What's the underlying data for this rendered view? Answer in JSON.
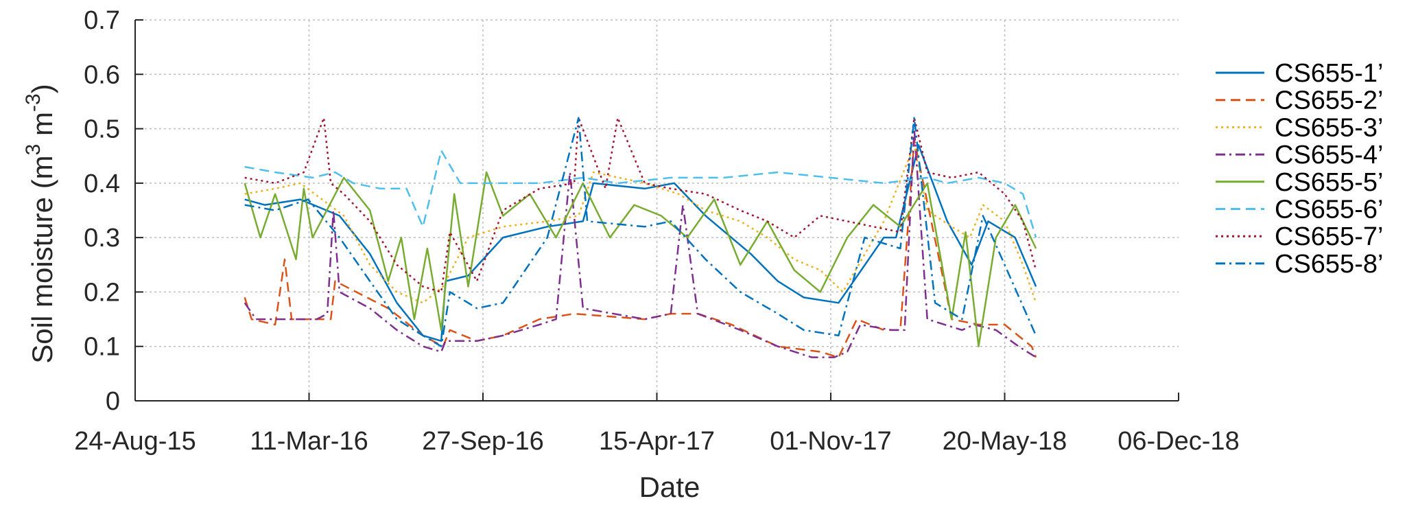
{
  "chart_data": {
    "type": "line",
    "xlabel": "Date",
    "ylabel_text": "Soil moisture (m",
    "ylabel_sup1": "3",
    "ylabel_mid": " m",
    "ylabel_sup2": "-3",
    "ylabel_end": ")",
    "ylim": [
      0,
      0.7
    ],
    "yticks": [
      0,
      0.1,
      0.2,
      0.3,
      0.4,
      0.5,
      0.6,
      0.7
    ],
    "ytick_labels": [
      "0",
      "0.1",
      "0.2",
      "0.3",
      "0.4",
      "0.5",
      "0.6",
      "0.7"
    ],
    "xlim": [
      "2015-08-24",
      "2018-12-06"
    ],
    "xticks": [
      "2015-08-24",
      "2016-03-11",
      "2016-09-27",
      "2017-04-15",
      "2017-11-01",
      "2018-05-20",
      "2018-12-06"
    ],
    "xtick_labels": [
      "24-Aug-15",
      "11-Mar-16",
      "27-Sep-16",
      "15-Apr-17",
      "01-Nov-17",
      "20-May-18",
      "06-Dec-18"
    ],
    "grid": true,
    "legend_position": "right",
    "series": [
      {
        "name": "CS655-1’",
        "color": "#0072BD",
        "dash": "solid",
        "x": [
          "2015-12-28",
          "2016-01-20",
          "2016-03-01",
          "2016-04-15",
          "2016-05-20",
          "2016-06-20",
          "2016-07-20",
          "2016-08-10",
          "2016-08-15",
          "2016-09-10",
          "2016-10-20",
          "2016-12-10",
          "2017-01-20",
          "2017-02-01",
          "2017-04-01",
          "2017-05-05",
          "2017-06-10",
          "2017-08-01",
          "2017-09-01",
          "2017-10-01",
          "2017-11-10",
          "2018-01-01",
          "2018-01-15",
          "2018-02-10",
          "2018-03-15",
          "2018-04-12",
          "2018-05-01",
          "2018-06-01",
          "2018-06-25"
        ],
        "y": [
          0.37,
          0.36,
          0.37,
          0.34,
          0.27,
          0.18,
          0.12,
          0.11,
          0.22,
          0.23,
          0.3,
          0.32,
          0.33,
          0.4,
          0.39,
          0.4,
          0.34,
          0.27,
          0.22,
          0.19,
          0.18,
          0.3,
          0.3,
          0.47,
          0.33,
          0.25,
          0.33,
          0.3,
          0.21
        ]
      },
      {
        "name": "CS655-2’",
        "color": "#D95319",
        "dash": "dashed",
        "x": [
          "2015-12-28",
          "2016-01-05",
          "2016-02-01",
          "2016-02-12",
          "2016-02-20",
          "2016-04-05",
          "2016-04-10",
          "2016-06-10",
          "2016-07-20",
          "2016-08-12",
          "2016-08-20",
          "2016-09-20",
          "2016-10-20",
          "2016-12-01",
          "2017-01-10",
          "2017-04-01",
          "2017-05-01",
          "2017-06-01",
          "2017-07-10",
          "2017-09-01",
          "2017-10-20",
          "2017-11-10",
          "2017-12-01",
          "2018-01-01",
          "2018-01-20",
          "2018-02-05",
          "2018-03-20",
          "2018-04-20",
          "2018-05-20",
          "2018-06-20",
          "2018-06-25"
        ],
        "y": [
          0.19,
          0.15,
          0.14,
          0.26,
          0.15,
          0.15,
          0.22,
          0.17,
          0.12,
          0.1,
          0.13,
          0.11,
          0.12,
          0.15,
          0.16,
          0.15,
          0.16,
          0.16,
          0.14,
          0.1,
          0.09,
          0.08,
          0.15,
          0.13,
          0.13,
          0.48,
          0.15,
          0.14,
          0.14,
          0.1,
          0.08
        ]
      },
      {
        "name": "CS655-3’",
        "color": "#EDB120",
        "dash": "dotted",
        "x": [
          "2015-12-28",
          "2016-02-01",
          "2016-03-01",
          "2016-04-20",
          "2016-05-20",
          "2016-06-20",
          "2016-07-20",
          "2016-08-12",
          "2016-09-10",
          "2016-10-20",
          "2016-12-10",
          "2017-01-15",
          "2017-02-01",
          "2017-04-01",
          "2017-05-10",
          "2017-06-10",
          "2017-07-20",
          "2017-08-20",
          "2017-09-20",
          "2017-10-20",
          "2017-11-15",
          "2018-01-01",
          "2018-02-05",
          "2018-02-20",
          "2018-03-20",
          "2018-04-10",
          "2018-04-25",
          "2018-05-20",
          "2018-06-10",
          "2018-06-25"
        ],
        "y": [
          0.38,
          0.39,
          0.4,
          0.34,
          0.25,
          0.2,
          0.18,
          0.21,
          0.3,
          0.32,
          0.33,
          0.34,
          0.42,
          0.4,
          0.38,
          0.35,
          0.33,
          0.3,
          0.26,
          0.24,
          0.2,
          0.33,
          0.47,
          0.35,
          0.32,
          0.3,
          0.36,
          0.33,
          0.25,
          0.18
        ]
      },
      {
        "name": "CS655-4’",
        "color": "#7E2F8E",
        "dash": "dashdot",
        "x": [
          "2015-12-28",
          "2016-01-10",
          "2016-03-20",
          "2016-04-01",
          "2016-04-08",
          "2016-04-15",
          "2016-05-20",
          "2016-06-20",
          "2016-07-20",
          "2016-08-10",
          "2016-08-15",
          "2016-09-20",
          "2016-10-20",
          "2016-12-01",
          "2016-12-20",
          "2017-01-05",
          "2017-01-20",
          "2017-04-01",
          "2017-05-01",
          "2017-05-15",
          "2017-06-01",
          "2017-07-20",
          "2017-09-01",
          "2017-10-10",
          "2017-11-05",
          "2017-11-20",
          "2017-12-05",
          "2018-01-10",
          "2018-01-25",
          "2018-02-05",
          "2018-02-20",
          "2018-04-01",
          "2018-04-15",
          "2018-05-10",
          "2018-06-05",
          "2018-06-25"
        ],
        "y": [
          0.18,
          0.15,
          0.15,
          0.16,
          0.35,
          0.2,
          0.17,
          0.13,
          0.1,
          0.09,
          0.11,
          0.11,
          0.12,
          0.14,
          0.15,
          0.42,
          0.17,
          0.15,
          0.16,
          0.36,
          0.16,
          0.13,
          0.1,
          0.08,
          0.08,
          0.09,
          0.14,
          0.13,
          0.13,
          0.5,
          0.15,
          0.13,
          0.14,
          0.13,
          0.1,
          0.08
        ]
      },
      {
        "name": "CS655-5’",
        "color": "#77AC30",
        "dash": "solid",
        "x": [
          "2015-12-28",
          "2016-01-15",
          "2016-02-01",
          "2016-02-25",
          "2016-03-05",
          "2016-03-15",
          "2016-04-20",
          "2016-05-20",
          "2016-06-10",
          "2016-06-25",
          "2016-07-10",
          "2016-07-25",
          "2016-08-10",
          "2016-08-25",
          "2016-09-10",
          "2016-10-01",
          "2016-10-20",
          "2016-11-20",
          "2016-12-20",
          "2017-01-20",
          "2017-02-20",
          "2017-03-20",
          "2017-04-20",
          "2017-05-20",
          "2017-06-20",
          "2017-07-20",
          "2017-08-20",
          "2017-09-20",
          "2017-10-20",
          "2017-11-20",
          "2017-12-20",
          "2018-01-20",
          "2018-02-20",
          "2018-03-20",
          "2018-04-05",
          "2018-04-20",
          "2018-05-10",
          "2018-06-01",
          "2018-06-25"
        ],
        "y": [
          0.4,
          0.3,
          0.38,
          0.26,
          0.39,
          0.3,
          0.41,
          0.35,
          0.22,
          0.3,
          0.15,
          0.28,
          0.13,
          0.38,
          0.21,
          0.42,
          0.34,
          0.38,
          0.3,
          0.4,
          0.3,
          0.36,
          0.34,
          0.3,
          0.37,
          0.25,
          0.33,
          0.24,
          0.2,
          0.3,
          0.36,
          0.32,
          0.4,
          0.15,
          0.31,
          0.1,
          0.3,
          0.36,
          0.28
        ]
      },
      {
        "name": "CS655-6’",
        "color": "#4DBEEE",
        "dash": "dashed",
        "x": [
          "2015-12-28",
          "2016-02-01",
          "2016-03-15",
          "2016-04-10",
          "2016-05-01",
          "2016-06-01",
          "2016-07-01",
          "2016-07-20",
          "2016-08-01",
          "2016-08-10",
          "2016-09-01",
          "2016-10-01",
          "2016-12-01",
          "2017-01-20",
          "2017-03-01",
          "2017-05-01",
          "2017-07-01",
          "2017-09-01",
          "2017-11-01",
          "2018-01-01",
          "2018-02-20",
          "2018-03-15",
          "2018-04-20",
          "2018-05-20",
          "2018-06-10",
          "2018-06-25"
        ],
        "y": [
          0.43,
          0.42,
          0.41,
          0.42,
          0.4,
          0.39,
          0.39,
          0.32,
          0.4,
          0.46,
          0.4,
          0.4,
          0.4,
          0.41,
          0.4,
          0.41,
          0.41,
          0.42,
          0.41,
          0.4,
          0.41,
          0.4,
          0.41,
          0.4,
          0.38,
          0.3
        ]
      },
      {
        "name": "CS655-7’",
        "color": "#A2142F",
        "dash": "dotted",
        "x": [
          "2015-12-28",
          "2016-02-01",
          "2016-03-05",
          "2016-03-28",
          "2016-04-05",
          "2016-04-20",
          "2016-05-20",
          "2016-06-20",
          "2016-07-20",
          "2016-08-10",
          "2016-08-20",
          "2016-09-20",
          "2016-10-20",
          "2016-12-01",
          "2017-01-10",
          "2017-01-15",
          "2017-02-15",
          "2017-03-01",
          "2017-04-01",
          "2017-05-01",
          "2017-06-10",
          "2017-07-20",
          "2017-08-20",
          "2017-09-20",
          "2017-10-20",
          "2017-11-20",
          "2017-12-20",
          "2018-01-20",
          "2018-02-05",
          "2018-02-20",
          "2018-03-20",
          "2018-04-20",
          "2018-05-20",
          "2018-06-10",
          "2018-06-25"
        ],
        "y": [
          0.41,
          0.4,
          0.42,
          0.52,
          0.4,
          0.38,
          0.33,
          0.25,
          0.21,
          0.2,
          0.31,
          0.22,
          0.35,
          0.39,
          0.4,
          0.52,
          0.39,
          0.52,
          0.4,
          0.39,
          0.38,
          0.35,
          0.33,
          0.3,
          0.34,
          0.33,
          0.32,
          0.31,
          0.52,
          0.42,
          0.41,
          0.42,
          0.38,
          0.33,
          0.24
        ]
      },
      {
        "name": "CS655-8’",
        "color": "#0072BD",
        "dash": "dashdot",
        "x": [
          "2015-12-28",
          "2016-02-01",
          "2016-03-10",
          "2016-04-15",
          "2016-05-20",
          "2016-06-20",
          "2016-07-20",
          "2016-08-10",
          "2016-08-20",
          "2016-09-10",
          "2016-09-20",
          "2016-10-20",
          "2016-12-10",
          "2017-01-15",
          "2017-01-25",
          "2017-04-01",
          "2017-05-01",
          "2017-06-10",
          "2017-07-20",
          "2017-09-01",
          "2017-10-01",
          "2017-11-10",
          "2017-12-10",
          "2018-01-20",
          "2018-02-05",
          "2018-03-01",
          "2018-04-01",
          "2018-04-25",
          "2018-05-20",
          "2018-06-25"
        ],
        "y": [
          0.36,
          0.35,
          0.37,
          0.3,
          0.22,
          0.15,
          0.12,
          0.1,
          0.2,
          0.18,
          0.17,
          0.18,
          0.3,
          0.52,
          0.33,
          0.32,
          0.33,
          0.26,
          0.2,
          0.16,
          0.13,
          0.12,
          0.3,
          0.28,
          0.52,
          0.18,
          0.15,
          0.34,
          0.25,
          0.12
        ]
      }
    ]
  }
}
